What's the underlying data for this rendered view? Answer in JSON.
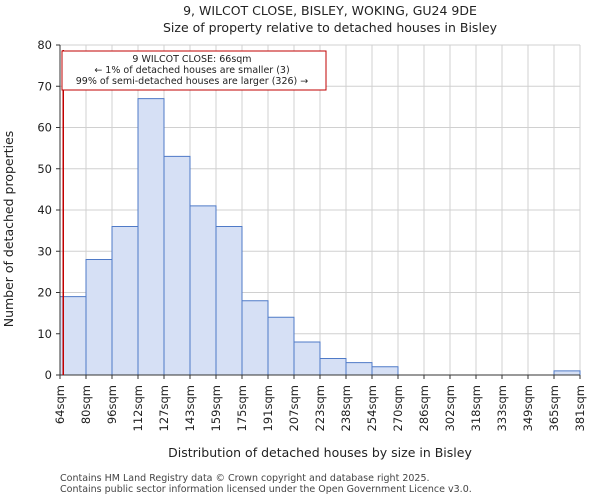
{
  "chart_data": {
    "type": "bar",
    "title_line1": "9, WILCOT CLOSE, BISLEY, WOKING, GU24 9DE",
    "title_line2": "Size of property relative to detached houses in Bisley",
    "xlabel": "Distribution of detached houses by size in Bisley",
    "ylabel": "Number of detached properties",
    "ylim": [
      0,
      80
    ],
    "yticks": [
      0,
      10,
      20,
      30,
      40,
      50,
      60,
      70,
      80
    ],
    "bin_edges": [
      "64sqm",
      "80sqm",
      "96sqm",
      "112sqm",
      "127sqm",
      "143sqm",
      "159sqm",
      "175sqm",
      "191sqm",
      "207sqm",
      "223sqm",
      "238sqm",
      "254sqm",
      "270sqm",
      "286sqm",
      "302sqm",
      "318sqm",
      "333sqm",
      "349sqm",
      "365sqm",
      "381sqm"
    ],
    "values": [
      19,
      28,
      36,
      67,
      53,
      41,
      36,
      18,
      14,
      8,
      4,
      3,
      2,
      0,
      0,
      0,
      0,
      0,
      0,
      1
    ],
    "grid": true,
    "property_marker_position_bins": 0.125,
    "annotation": {
      "line1": "9 WILCOT CLOSE: 66sqm",
      "line2": "← 1% of detached houses are smaller (3)",
      "line3": "99% of semi-detached houses are larger (326) →"
    },
    "colors": {
      "bar_fill": "#d6e0f5",
      "bar_edge": "#4f7ac7",
      "marker": "#c00000",
      "grid": "#d0d0d0"
    }
  },
  "footer": {
    "line1": "Contains HM Land Registry data © Crown copyright and database right 2025.",
    "line2": "Contains public sector information licensed under the Open Government Licence v3.0."
  }
}
